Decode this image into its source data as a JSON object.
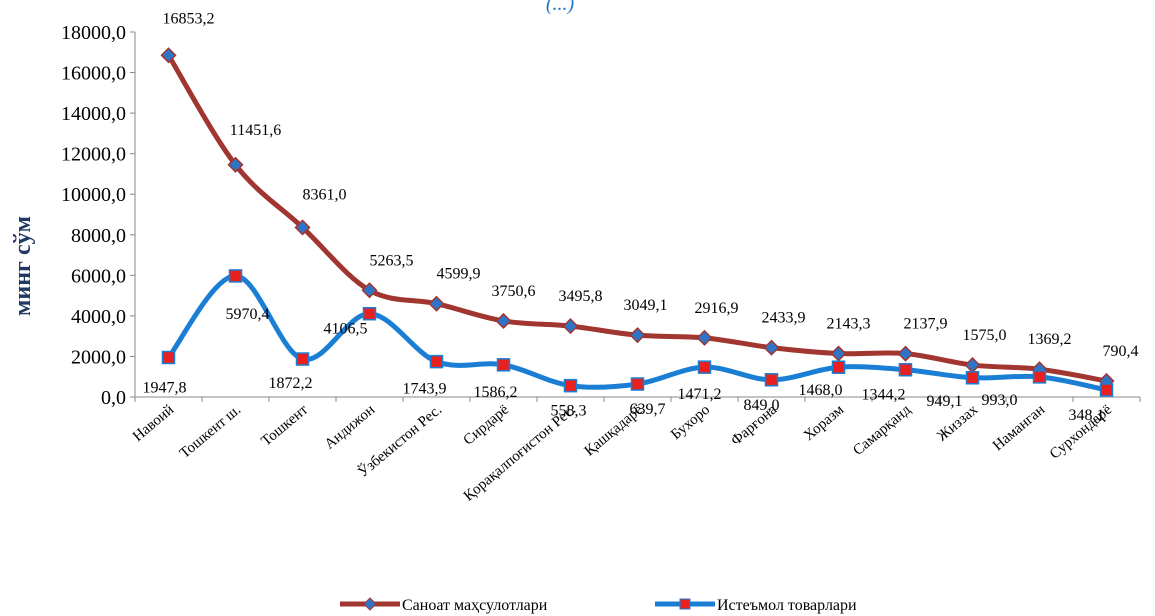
{
  "chart_data": {
    "type": "line",
    "title": "(...)",
    "ylabel": "минг сўм",
    "ylim": [
      0,
      18000
    ],
    "yticks": [
      "0,0",
      "2000,0",
      "4000,0",
      "6000,0",
      "8000,0",
      "10000,0",
      "12000,0",
      "14000,0",
      "16000,0",
      "18000,0"
    ],
    "categories": [
      "Навоий",
      "Тошкент ш.",
      "Тошкент",
      "Андижон",
      "Ўзбекистон Рес.",
      "Сирдарё",
      "Қорақалпоғистон Рес.",
      "Қашқадарё",
      "Бухоро",
      "Фарғона",
      "Хоразм",
      "Самарқанд",
      "Жиззах",
      "Наманган",
      "Сурхондарё"
    ],
    "series": [
      {
        "name": "Саноат маҳсулотлари",
        "color": "#a0362f",
        "marker_color": "#2e75c8",
        "marker": "diamond",
        "values": [
          16853.2,
          11451.6,
          8361.0,
          5263.5,
          4599.9,
          3750.6,
          3495.8,
          3049.1,
          2916.9,
          2433.9,
          2143.3,
          2137.9,
          1575.0,
          1369.2,
          790.4
        ],
        "labels": [
          "16853,2",
          "11451,6",
          "8361,0",
          "5263,5",
          "4599,9",
          "3750,6",
          "3495,8",
          "3049,1",
          "2916,9",
          "2433,9",
          "2143,3",
          "2137,9",
          "1575,0",
          "1369,2",
          "790,4"
        ]
      },
      {
        "name": "Истеъмол товарлари",
        "color": "#1a7fd4",
        "marker_color": "#e82020",
        "marker": "square",
        "values": [
          1947.8,
          5970.4,
          1872.2,
          4106.5,
          1743.9,
          1586.2,
          558.3,
          639.7,
          1471.2,
          849.0,
          1468.0,
          1344.2,
          949.1,
          993.0,
          348.1
        ],
        "labels": [
          "1947,8",
          "5970,4",
          "1872,2",
          "4106,5",
          "1743,9",
          "1586,2",
          "558,3",
          "639,7",
          "1471,2",
          "849,0",
          "1468,0",
          "1344,2",
          "949,1",
          "993,0",
          "348,1"
        ]
      }
    ],
    "grid": false,
    "legend": "bottom"
  }
}
